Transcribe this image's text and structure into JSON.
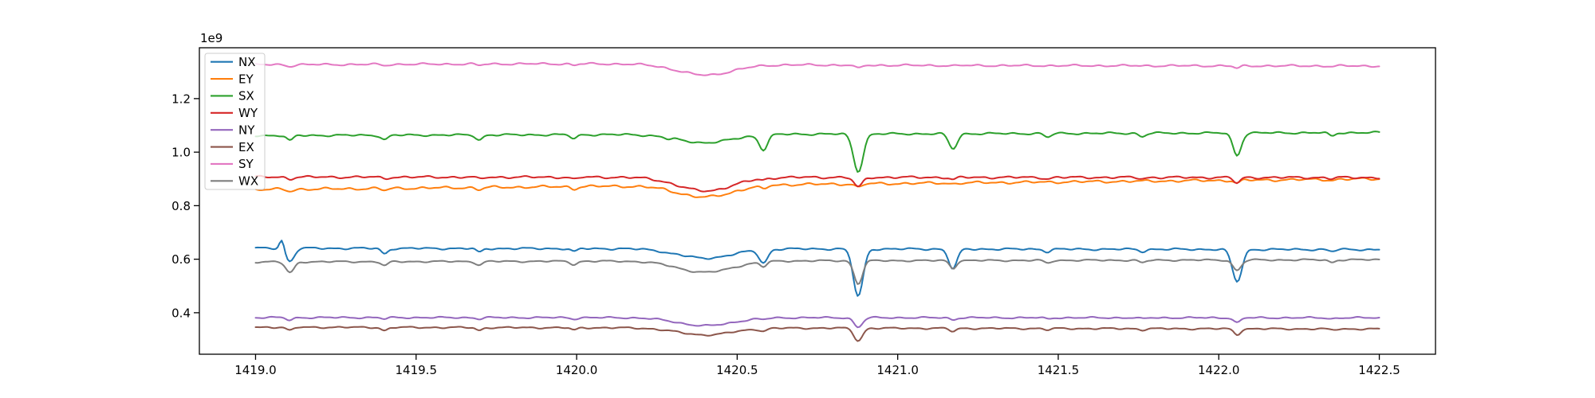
{
  "figure": {
    "background": "#ffffff"
  },
  "axes": {
    "offset_text": "1e9",
    "xlabel": "",
    "ylabel": "",
    "title": "",
    "x_ticks": [
      1419.0,
      1419.5,
      1420.0,
      1420.5,
      1421.0,
      1421.5,
      1422.0,
      1422.5
    ],
    "x_tick_labels": [
      "1419.0",
      "1419.5",
      "1420.0",
      "1420.5",
      "1421.0",
      "1421.5",
      "1422.0",
      "1422.5"
    ],
    "y_ticks": [
      0.4,
      0.6,
      0.8,
      1.0,
      1.2
    ],
    "y_tick_labels": [
      "0.4",
      "0.6",
      "0.8",
      "1.0",
      "1.2"
    ],
    "xlim": [
      1418.825,
      1422.675
    ],
    "ylim": [
      0.245,
      1.39
    ],
    "grid": false,
    "frame": "box",
    "spine_color": "#000000"
  },
  "legend": {
    "position": "upper-left",
    "frame_color": "#cccccc",
    "fill_opacity": 0.8
  },
  "chart_data": {
    "type": "line",
    "title": "",
    "xlabel": "",
    "ylabel": "",
    "y_scale_note": "all y values are in units of 1e9",
    "x_range": [
      1419.0,
      1422.5
    ],
    "legend_entries": [
      "NX",
      "EY",
      "SX",
      "WY",
      "NY",
      "EX",
      "SY",
      "WX"
    ],
    "dip_xs": [
      1419.107,
      1419.402,
      1419.697,
      1419.992,
      1420.287,
      1420.582,
      1420.877,
      1421.172,
      1421.467,
      1421.762,
      1422.057,
      1422.352
    ],
    "broad_dip": {
      "center": 1420.4,
      "sigma": 0.085
    },
    "series": [
      {
        "name": "NX",
        "color": "#1f77b4",
        "level_start": 0.641,
        "level_end": 0.636,
        "broad_depth": 0.035,
        "wiggle": 0.0022,
        "dip_min": [
          0.591,
          0.62,
          0.626,
          0.628,
          0.622,
          0.585,
          0.46,
          0.564,
          0.628,
          0.629,
          0.516,
          0.629
        ],
        "spike": {
          "x": 1419.082,
          "amp": 0.036,
          "sigma": 0.007
        }
      },
      {
        "name": "EY",
        "color": "#ff7f0e",
        "level_start": 0.86,
        "level_end": 0.9,
        "broad_depth": 0.044,
        "wiggle": 0.0028,
        "dip_min": [
          0.854,
          0.857,
          0.86,
          0.863,
          0.864,
          0.861,
          0.868,
          0.881,
          0.888,
          0.891,
          0.884,
          0.895
        ]
      },
      {
        "name": "SX",
        "color": "#2ca02c",
        "level_start": 1.062,
        "level_end": 1.073,
        "broad_depth": 0.031,
        "wiggle": 0.0022,
        "dip_min": [
          1.042,
          1.046,
          1.045,
          1.05,
          1.048,
          1.009,
          0.928,
          1.012,
          1.055,
          1.058,
          0.988,
          1.06
        ]
      },
      {
        "name": "WY",
        "color": "#d62728",
        "level_start": 0.907,
        "level_end": 0.905,
        "broad_depth": 0.051,
        "wiggle": 0.0025,
        "dip_min": [
          0.9,
          0.901,
          0.9,
          0.898,
          0.899,
          0.896,
          0.869,
          0.897,
          0.9,
          0.901,
          0.884,
          0.901
        ]
      },
      {
        "name": "NY",
        "color": "#9467bd",
        "level_start": 0.382,
        "level_end": 0.381,
        "broad_depth": 0.03,
        "wiggle": 0.0018,
        "dip_min": [
          0.372,
          0.377,
          0.377,
          0.377,
          0.376,
          0.375,
          0.346,
          0.374,
          0.377,
          0.377,
          0.362,
          0.377
        ]
      },
      {
        "name": "EX",
        "color": "#8c564b",
        "level_start": 0.346,
        "level_end": 0.339,
        "broad_depth": 0.026,
        "wiggle": 0.0018,
        "dip_min": [
          0.333,
          0.333,
          0.334,
          0.335,
          0.334,
          0.331,
          0.295,
          0.33,
          0.336,
          0.336,
          0.318,
          0.336
        ]
      },
      {
        "name": "SY",
        "color": "#e377c2",
        "level_start": 1.326,
        "level_end": 1.322,
        "broad_depth": 0.04,
        "wiggle": 0.0022,
        "bump": {
          "center": 1420.0,
          "amp": 0.005,
          "sigma": 0.5
        },
        "dip_min": [
          1.321,
          1.324,
          1.324,
          1.325,
          1.326,
          1.323,
          1.312,
          1.322,
          1.324,
          1.323,
          1.313,
          1.32
        ]
      },
      {
        "name": "WX",
        "color": "#7f7f7f",
        "level_start": 0.59,
        "level_end": 0.598,
        "broad_depth": 0.042,
        "wiggle": 0.0018,
        "dip_min": [
          0.549,
          0.575,
          0.578,
          0.58,
          0.579,
          0.572,
          0.508,
          0.565,
          0.585,
          0.586,
          0.558,
          0.588
        ]
      }
    ]
  }
}
